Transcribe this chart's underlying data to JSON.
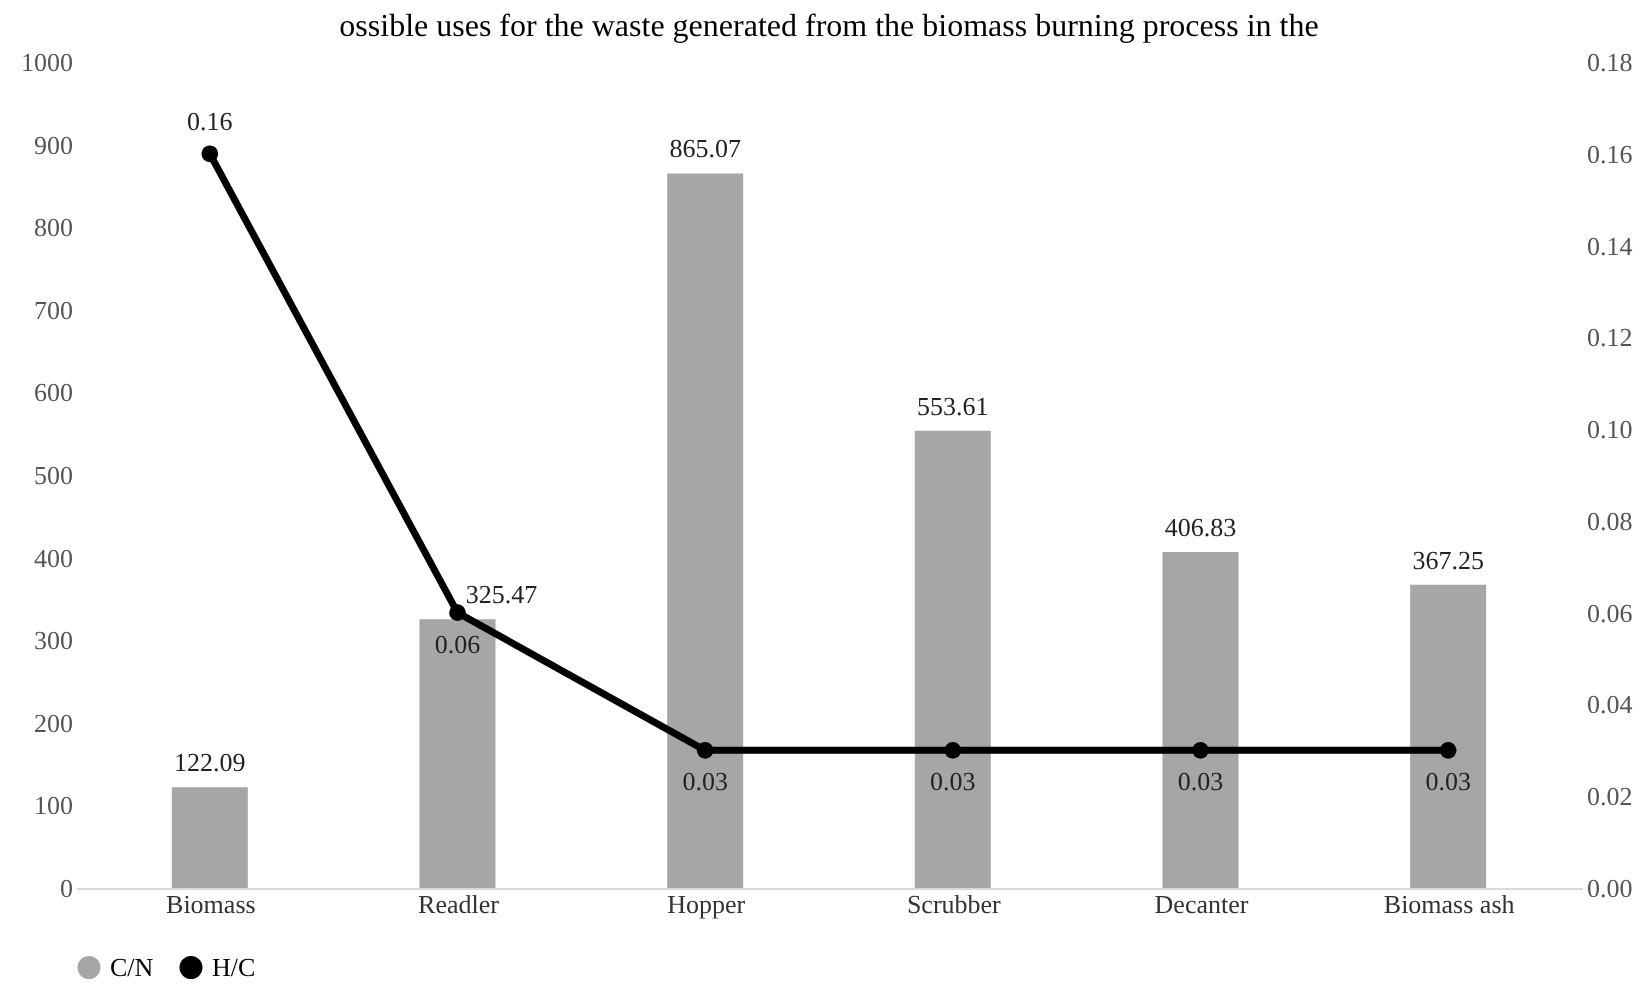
{
  "chart_data": {
    "type": "bar",
    "title": "ossible uses for the waste generated from the biomass burning process in the",
    "categories": [
      "Biomass",
      "Readler",
      "Hopper",
      "Scrubber",
      "Decanter",
      "Biomass ash"
    ],
    "series": [
      {
        "name": "C/N",
        "color": "#a6a6a6",
        "values": [
          122.09,
          325.47,
          865.07,
          553.61,
          406.83,
          367.25
        ]
      },
      {
        "name": "H/C",
        "type": "line",
        "axis": "y2",
        "color": "#000000",
        "values": [
          0.16,
          0.06,
          0.03,
          0.03,
          0.03,
          0.03
        ]
      }
    ],
    "ylim": [
      0,
      1000
    ],
    "yticks": [
      0,
      100,
      200,
      300,
      400,
      500,
      600,
      700,
      800,
      900,
      1000
    ],
    "y2lim": [
      0,
      0.18
    ],
    "y2ticks": [
      {
        "value": 0,
        "label": "0.00"
      },
      {
        "value": 0.02,
        "label": "0.02"
      },
      {
        "value": 0.04,
        "label": "0.04"
      },
      {
        "value": 0.06,
        "label": "0.06"
      },
      {
        "value": 0.08,
        "label": "0.08"
      },
      {
        "value": 0.1,
        "label": "0.10"
      },
      {
        "value": 0.12,
        "label": "0.12"
      },
      {
        "value": 0.14,
        "label": "0.14"
      },
      {
        "value": 0.16,
        "label": "0.16"
      },
      {
        "value": 0.18,
        "label": "0.18"
      }
    ],
    "data_labels": true,
    "legend": "bottom",
    "marker": "circle"
  }
}
